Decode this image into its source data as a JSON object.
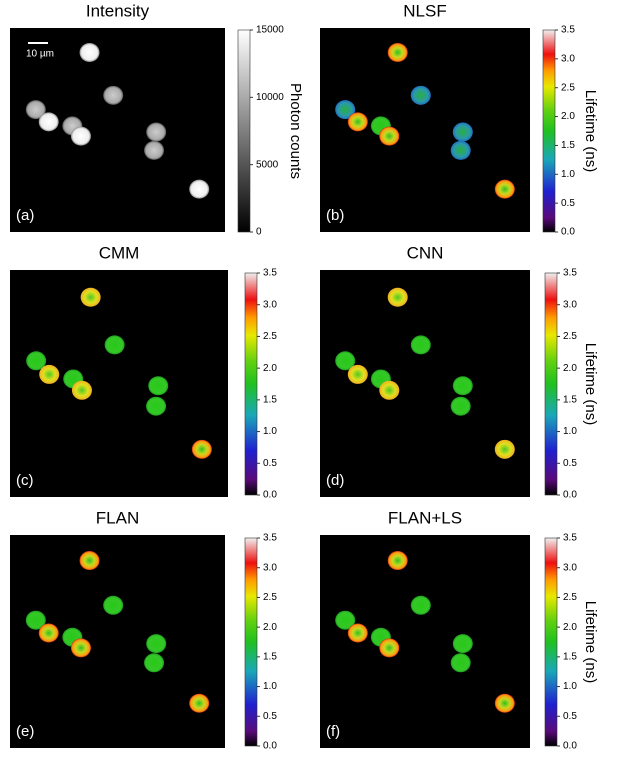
{
  "panels": [
    {
      "title": "Intensity",
      "label": "(a)",
      "scale_bar": "10 µm",
      "colorbar": {
        "ticks": [
          "15000",
          "10000",
          "5000",
          "0"
        ],
        "label": "Photon counts"
      }
    },
    {
      "title": "NLSF",
      "label": "(b)",
      "colorbar": {
        "ticks": [
          "3.5",
          "3.0",
          "2.5",
          "2.0",
          "1.5",
          "1.0",
          "0.5",
          "0.0"
        ],
        "label": "Lifetime (ns)"
      }
    },
    {
      "title": "CMM",
      "label": "(c)",
      "colorbar": {
        "ticks": [
          "3.5",
          "3.0",
          "2.5",
          "2.0",
          "1.5",
          "1.0",
          "0.5",
          "0.0"
        ]
      }
    },
    {
      "title": "CNN",
      "label": "(d)",
      "colorbar": {
        "ticks": [
          "3.5",
          "3.0",
          "2.5",
          "2.0",
          "1.5",
          "1.0",
          "0.5",
          "0.0"
        ],
        "label": "Lifetime (ns)"
      }
    },
    {
      "title": "FLAN",
      "label": "(e)",
      "colorbar": {
        "ticks": [
          "3.5",
          "3.0",
          "2.5",
          "2.0",
          "1.5",
          "1.0",
          "0.5",
          "0.0"
        ]
      }
    },
    {
      "title": "FLAN+LS",
      "label": "(f)",
      "colorbar": {
        "ticks": [
          "3.5",
          "3.0",
          "2.5",
          "2.0",
          "1.5",
          "1.0",
          "0.5",
          "0.0"
        ],
        "label": "Lifetime (ns)"
      }
    }
  ]
}
